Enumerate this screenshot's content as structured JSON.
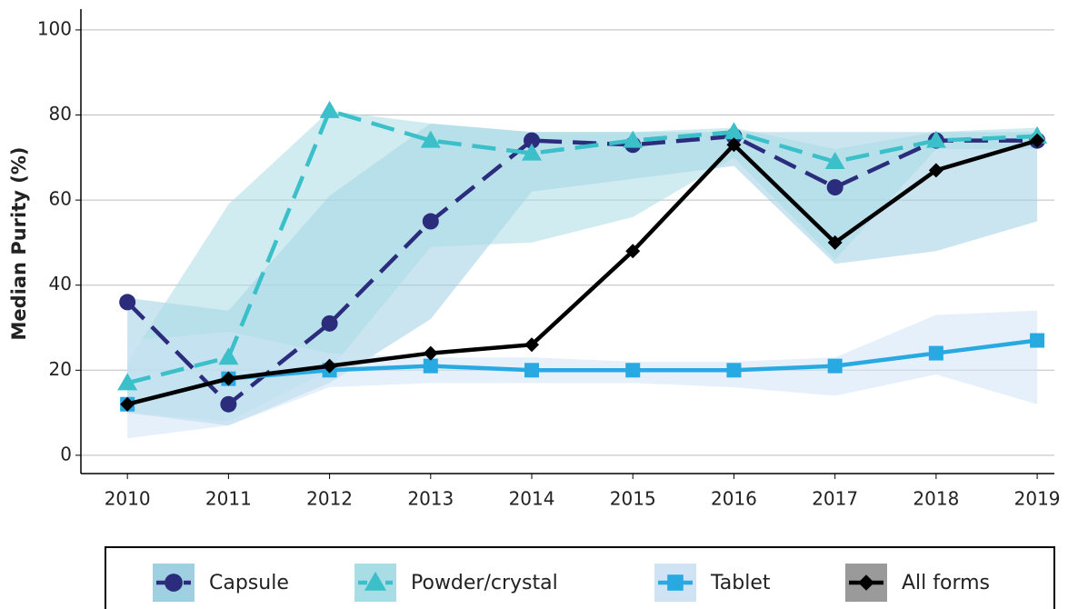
{
  "chart_data": {
    "type": "line",
    "y_label": "Median Purity (%)",
    "x": [
      2010,
      2011,
      2012,
      2013,
      2014,
      2015,
      2016,
      2017,
      2018,
      2019
    ],
    "xlim": [
      2009.54,
      2019.17
    ],
    "ylim": [
      -4.3,
      104.9
    ],
    "yticks": [
      0,
      20,
      40,
      60,
      80,
      100
    ],
    "grid": true,
    "legend": "bottom",
    "series": [
      {
        "name": "Capsule",
        "color": "#2b2d7c",
        "band_color": "#9fd0e1",
        "marker": "circle",
        "dashed": true,
        "values": [
          36,
          12,
          31,
          55,
          74,
          73,
          75,
          63,
          74,
          74
        ],
        "lower": [
          10,
          7,
          17,
          32,
          62,
          65,
          68,
          45,
          48,
          55
        ],
        "upper": [
          37,
          34,
          61,
          78,
          76,
          76,
          76,
          76,
          76,
          76
        ]
      },
      {
        "name": "Powder/crystal",
        "color": "#3bbfc8",
        "band_color": "#a9dde6",
        "marker": "triangle",
        "dashed": true,
        "values": [
          17,
          23,
          81,
          74,
          71,
          74,
          76,
          69,
          74,
          75
        ],
        "lower": [
          10,
          8,
          20,
          49,
          50,
          56,
          70,
          46,
          72,
          72
        ],
        "upper": [
          22,
          59,
          81,
          78,
          76,
          76,
          77,
          72,
          76,
          77
        ]
      },
      {
        "name": "Tablet",
        "color": "#29a9e1",
        "band_color": "#cfe3f5",
        "marker": "square",
        "dashed": false,
        "values": [
          12,
          18,
          20,
          21,
          20,
          20,
          20,
          21,
          24,
          27
        ],
        "lower": [
          4,
          7,
          16,
          17,
          17,
          17,
          16,
          14,
          19,
          12
        ],
        "upper": [
          27,
          29,
          24,
          23,
          23,
          22,
          22,
          23,
          33,
          34
        ]
      },
      {
        "name": "All forms",
        "color": "#000000",
        "band_color": "#9a9a9a",
        "marker": "diamond",
        "dashed": false,
        "values": [
          12,
          18,
          21,
          24,
          26,
          48,
          73,
          50,
          67,
          74
        ]
      }
    ]
  }
}
